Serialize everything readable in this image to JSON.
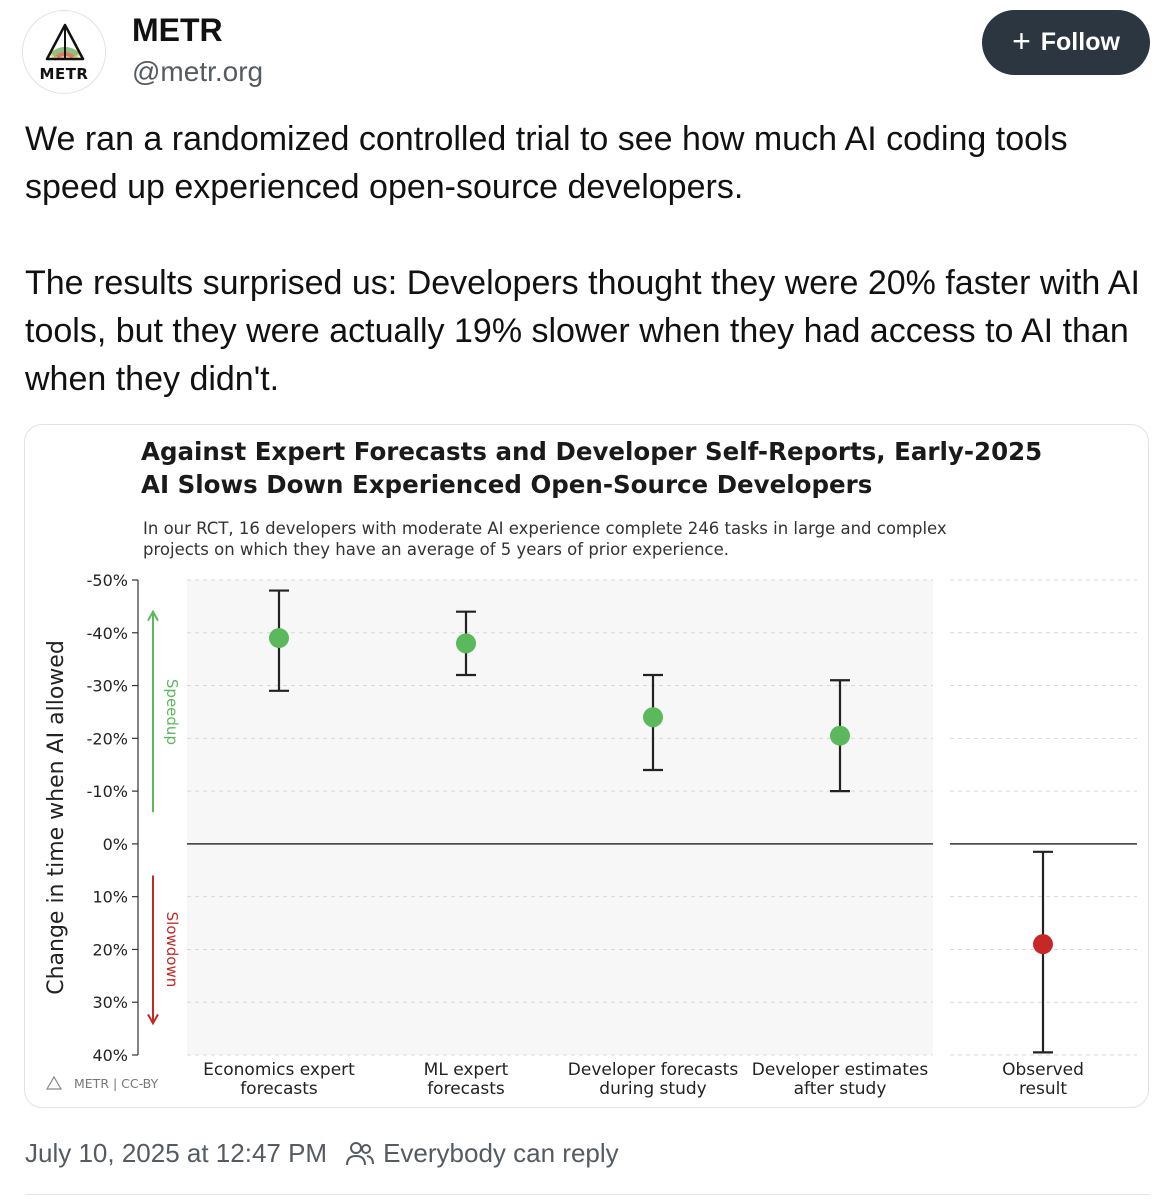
{
  "post": {
    "author_name": "METR",
    "handle": "@metr.org",
    "avatar_text": "METR",
    "follow_label": "Follow",
    "paragraphs": [
      "We ran a randomized controlled trial to see how much AI coding tools speed up experienced open-source developers.",
      "The results surprised us: Developers thought they were 20% faster with AI tools, but they were actually 19% slower when they had access to AI than when they didn't."
    ],
    "timestamp": "July 10, 2025 at 12:47 PM",
    "reply_setting": "Everybody can reply"
  },
  "icons": {
    "avatar": "metr-logo-icon",
    "follow": "plus-icon",
    "reply": "people-icon"
  },
  "colors": {
    "follow_bg": "#2b3640",
    "speedup": "#5cb85c",
    "slowdown": "#c62828"
  },
  "chart_data": {
    "type": "errorbar",
    "title": [
      "Against Expert Forecasts and Developer Self-Reports, Early-2025",
      "AI Slows Down Experienced Open-Source Developers"
    ],
    "subtitle": [
      "In our RCT, 16 developers with moderate AI experience complete 246 tasks in large and complex",
      "projects on which they have an average of 5 years of prior experience."
    ],
    "ylabel": "Change in time when AI allowed",
    "yticks": [
      -50,
      -40,
      -30,
      -20,
      -10,
      0,
      10,
      20,
      30,
      40
    ],
    "yticklabels": [
      "-50%",
      "-40%",
      "-30%",
      "-20%",
      "-10%",
      "0%",
      "10%",
      "20%",
      "30%",
      "40%"
    ],
    "ylim": [
      -50,
      40
    ],
    "y_inverted": true,
    "arrow_labels": {
      "up": "Speedup",
      "down": "Slowdown"
    },
    "categories": [
      {
        "label": [
          "Economics expert",
          "forecasts"
        ],
        "value": -39,
        "low": -48,
        "high": -29,
        "group": "forecast"
      },
      {
        "label": [
          "ML expert",
          "forecasts"
        ],
        "value": -38,
        "low": -44,
        "high": -32,
        "group": "forecast"
      },
      {
        "label": [
          "Developer forecasts",
          "during study"
        ],
        "value": -24,
        "low": -32,
        "high": -14,
        "group": "forecast"
      },
      {
        "label": [
          "Developer estimates",
          "after study"
        ],
        "value": -20.5,
        "low": -31,
        "high": -10,
        "group": "forecast"
      },
      {
        "label": [
          "Observed",
          "result"
        ],
        "value": 19,
        "low": 1.5,
        "high": 39.5,
        "group": "observed"
      }
    ],
    "credit": "METR | CC-BY"
  }
}
